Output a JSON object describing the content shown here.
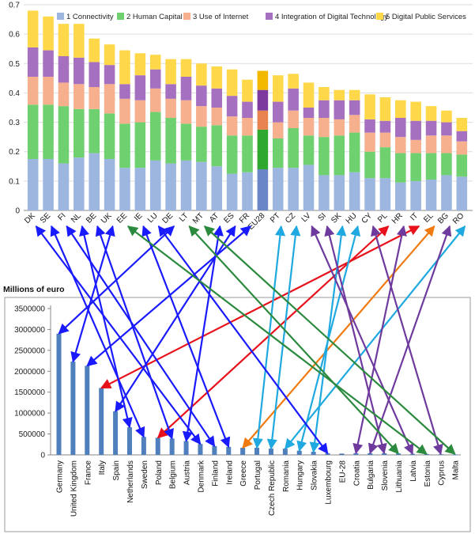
{
  "chart_data": [
    {
      "type": "bar",
      "stacked": true,
      "categories": [
        "DK",
        "SE",
        "FI",
        "NL",
        "BE",
        "UK",
        "EE",
        "IE",
        "LU",
        "DE",
        "LT",
        "MT",
        "AT",
        "ES",
        "FR",
        "EU28",
        "PT",
        "CZ",
        "LV",
        "SI",
        "SK",
        "HU",
        "CY",
        "PL",
        "HR",
        "IT",
        "EL",
        "BG",
        "RO"
      ],
      "highlight_category": "EU28",
      "ylim": [
        0,
        0.7
      ],
      "yticks": [
        "0",
        "0.1",
        "0.2",
        "0.3",
        "0.4",
        "0.5",
        "0.6",
        "0.7"
      ],
      "grid": true,
      "legend_position": "top",
      "series": [
        {
          "name": "1 Connectivity",
          "color": "#9db6e0",
          "highlight_color": "#6a86c7",
          "values": [
            0.175,
            0.175,
            0.16,
            0.18,
            0.195,
            0.175,
            0.145,
            0.145,
            0.17,
            0.16,
            0.17,
            0.165,
            0.15,
            0.125,
            0.13,
            0.14,
            0.145,
            0.145,
            0.155,
            0.12,
            0.12,
            0.13,
            0.11,
            0.11,
            0.095,
            0.1,
            0.105,
            0.12,
            0.115
          ]
        },
        {
          "name": "2 Human Capital",
          "color": "#6ed06e",
          "highlight_color": "#2fa82f",
          "values": [
            0.185,
            0.185,
            0.195,
            0.165,
            0.15,
            0.155,
            0.15,
            0.155,
            0.165,
            0.155,
            0.125,
            0.12,
            0.14,
            0.13,
            0.125,
            0.135,
            0.1,
            0.135,
            0.1,
            0.13,
            0.135,
            0.135,
            0.09,
            0.105,
            0.1,
            0.095,
            0.09,
            0.075,
            0.075
          ]
        },
        {
          "name": "3 Use of Internet",
          "color": "#f6b08e",
          "highlight_color": "#e8824f",
          "values": [
            0.095,
            0.095,
            0.08,
            0.085,
            0.075,
            0.1,
            0.085,
            0.075,
            0.08,
            0.065,
            0.08,
            0.07,
            0.06,
            0.065,
            0.06,
            0.065,
            0.055,
            0.06,
            0.06,
            0.065,
            0.055,
            0.06,
            0.065,
            0.05,
            0.055,
            0.045,
            0.06,
            0.06,
            0.045
          ]
        },
        {
          "name": "4 Integration of Digital Technology",
          "color": "#a670c0",
          "highlight_color": "#7c3a9e",
          "values": [
            0.1,
            0.09,
            0.09,
            0.09,
            0.085,
            0.065,
            0.05,
            0.085,
            0.065,
            0.05,
            0.08,
            0.07,
            0.065,
            0.07,
            0.055,
            0.07,
            0.07,
            0.075,
            0.035,
            0.06,
            0.065,
            0.05,
            0.045,
            0.04,
            0.065,
            0.065,
            0.05,
            0.045,
            0.035
          ]
        },
        {
          "name": "5 Digital Public Services",
          "color": "#ffd84a",
          "highlight_color": "#f2b800",
          "values": [
            0.125,
            0.115,
            0.11,
            0.115,
            0.08,
            0.07,
            0.115,
            0.075,
            0.05,
            0.085,
            0.06,
            0.075,
            0.075,
            0.09,
            0.075,
            0.065,
            0.09,
            0.05,
            0.085,
            0.045,
            0.035,
            0.035,
            0.085,
            0.08,
            0.06,
            0.065,
            0.05,
            0.04,
            0.045
          ]
        }
      ]
    },
    {
      "type": "bar",
      "title": "Millions of euro",
      "categories": [
        "Germany",
        "United Kingdom",
        "France",
        "Italy",
        "Spain",
        "Netherlands",
        "Sweden",
        "Poland",
        "Belgium",
        "Austria",
        "Denmark",
        "Finland",
        "Ireland",
        "Greece",
        "Portugal",
        "Czech Republic",
        "Romania",
        "Hungary",
        "Slovakia",
        "Luxembourg",
        "EU-28",
        "Croatia",
        "Bulgaria",
        "Slovenia",
        "Lithuania",
        "Latvia",
        "Estonia",
        "Cyprus",
        "Malta"
      ],
      "values": [
        2900000,
        2230000,
        2130000,
        1600000,
        1040000,
        660000,
        430000,
        410000,
        390000,
        330000,
        260000,
        210000,
        190000,
        170000,
        170000,
        150000,
        150000,
        100000,
        75000,
        40000,
        30000,
        40000,
        40000,
        40000,
        35000,
        25000,
        20000,
        15000,
        8000
      ],
      "ylim": [
        0,
        3500000
      ],
      "yticks": [
        "0",
        "500000",
        "1000000",
        "1500000",
        "2000000",
        "2500000",
        "3000000",
        "3500000"
      ],
      "grid": false,
      "bar_color": "#4f7fbd",
      "highlight_category": "EU-28",
      "highlight_color": "#3f6faf"
    }
  ],
  "connector_colors": {
    "blue": "#1a1aff",
    "green": "#2b8a3e",
    "purple": "#6e3a9e",
    "cyan": "#1fa9e0",
    "red": "#e8101a",
    "orange": "#f07a10"
  },
  "connectors": [
    {
      "from": "Germany",
      "to": "DE",
      "color": "blue"
    },
    {
      "from": "United Kingdom",
      "to": "UK",
      "color": "blue"
    },
    {
      "from": "France",
      "to": "FR",
      "color": "blue"
    },
    {
      "from": "Italy",
      "to": "IT",
      "color": "red"
    },
    {
      "from": "Spain",
      "to": "ES",
      "color": "blue"
    },
    {
      "from": "Netherlands",
      "to": "NL",
      "color": "blue"
    },
    {
      "from": "Sweden",
      "to": "SE",
      "color": "blue"
    },
    {
      "from": "Poland",
      "to": "PL",
      "color": "red"
    },
    {
      "from": "Belgium",
      "to": "BE",
      "color": "blue"
    },
    {
      "from": "Austria",
      "to": "AT",
      "color": "blue"
    },
    {
      "from": "Denmark",
      "to": "DK",
      "color": "blue"
    },
    {
      "from": "Finland",
      "to": "FI",
      "color": "blue"
    },
    {
      "from": "Ireland",
      "to": "IE",
      "color": "blue"
    },
    {
      "from": "Greece",
      "to": "EL",
      "color": "orange"
    },
    {
      "from": "Portugal",
      "to": "PT",
      "color": "cyan"
    },
    {
      "from": "Czech Republic",
      "to": "CZ",
      "color": "cyan"
    },
    {
      "from": "Romania",
      "to": "RO",
      "color": "cyan"
    },
    {
      "from": "Hungary",
      "to": "HU",
      "color": "cyan"
    },
    {
      "from": "Slovakia",
      "to": "SK",
      "color": "cyan"
    },
    {
      "from": "Luxembourg",
      "to": "LU",
      "color": "blue"
    },
    {
      "from": "Croatia",
      "to": "HR",
      "color": "purple"
    },
    {
      "from": "Bulgaria",
      "to": "BG",
      "color": "purple"
    },
    {
      "from": "Slovenia",
      "to": "SI",
      "color": "purple"
    },
    {
      "from": "Lithuania",
      "to": "LT",
      "color": "green"
    },
    {
      "from": "Latvia",
      "to": "LV",
      "color": "purple"
    },
    {
      "from": "Estonia",
      "to": "EE",
      "color": "green"
    },
    {
      "from": "Cyprus",
      "to": "CY",
      "color": "purple"
    },
    {
      "from": "Malta",
      "to": "MT",
      "color": "green"
    }
  ]
}
